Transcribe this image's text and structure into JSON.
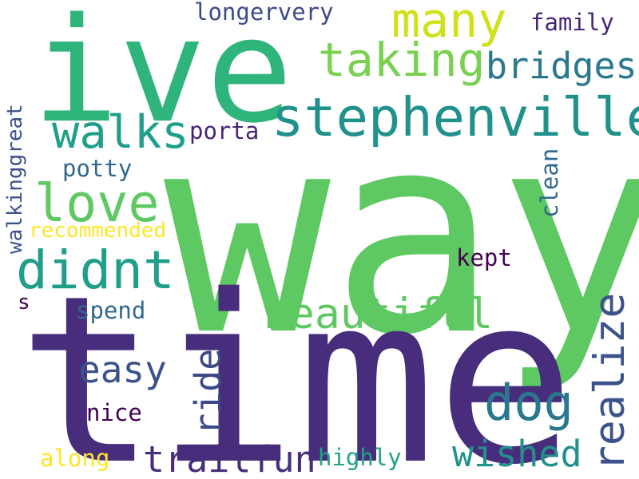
{
  "words": [
    {
      "id": "way",
      "text": "way",
      "color": "#5ec962",
      "orientation": "horizontal"
    },
    {
      "id": "time",
      "text": "time",
      "color": "#472d7b",
      "orientation": "horizontal"
    },
    {
      "id": "ive",
      "text": "ive",
      "color": "#2fb47c",
      "orientation": "horizontal"
    },
    {
      "id": "stephenville",
      "text": "stephenville",
      "color": "#21918c",
      "orientation": "horizontal"
    },
    {
      "id": "many",
      "text": "many",
      "color": "#d0e11c",
      "orientation": "horizontal"
    },
    {
      "id": "taking",
      "text": "taking",
      "color": "#7ad151",
      "orientation": "horizontal"
    },
    {
      "id": "bridges",
      "text": "bridges",
      "color": "#2a788e",
      "orientation": "horizontal"
    },
    {
      "id": "walks",
      "text": "walks",
      "color": "#1f9e89",
      "orientation": "horizontal"
    },
    {
      "id": "love",
      "text": "love",
      "color": "#5ec962",
      "orientation": "horizontal"
    },
    {
      "id": "didnt",
      "text": "didnt",
      "color": "#1f9e89",
      "orientation": "horizontal"
    },
    {
      "id": "beautiful",
      "text": "beautiful",
      "color": "#5ec962",
      "orientation": "horizontal"
    },
    {
      "id": "realize",
      "text": "realize",
      "color": "#3b528b",
      "orientation": "vertical"
    },
    {
      "id": "dog",
      "text": "dog",
      "color": "#2a788e",
      "orientation": "horizontal"
    },
    {
      "id": "easy",
      "text": "easy",
      "color": "#3b528b",
      "orientation": "horizontal"
    },
    {
      "id": "trailfun",
      "text": "trailfun",
      "color": "#472d7b",
      "orientation": "horizontal"
    },
    {
      "id": "wished",
      "text": "wished",
      "color": "#21918c",
      "orientation": "horizontal"
    },
    {
      "id": "ride",
      "text": "ride",
      "color": "#3e4989",
      "orientation": "vertical"
    },
    {
      "id": "longervery",
      "text": "longervery",
      "color": "#3e4989",
      "orientation": "horizontal"
    },
    {
      "id": "family",
      "text": "family",
      "color": "#482677",
      "orientation": "horizontal"
    },
    {
      "id": "porta",
      "text": "porta",
      "color": "#482677",
      "orientation": "horizontal"
    },
    {
      "id": "potty",
      "text": "potty",
      "color": "#31688e",
      "orientation": "horizontal"
    },
    {
      "id": "clean",
      "text": "clean",
      "color": "#31688e",
      "orientation": "vertical"
    },
    {
      "id": "walkinggreat",
      "text": "walkinggreat",
      "color": "#3b528b",
      "orientation": "vertical"
    },
    {
      "id": "recommended",
      "text": "recommended",
      "color": "#fde725",
      "orientation": "horizontal"
    },
    {
      "id": "kept",
      "text": "kept",
      "color": "#440154",
      "orientation": "horizontal"
    },
    {
      "id": "s",
      "text": "s",
      "color": "#440154",
      "orientation": "horizontal"
    },
    {
      "id": "spend",
      "text": "spend",
      "color": "#31688e",
      "orientation": "horizontal"
    },
    {
      "id": "nice",
      "text": "nice",
      "color": "#440154",
      "orientation": "horizontal"
    },
    {
      "id": "along",
      "text": "along",
      "color": "#fde725",
      "orientation": "horizontal"
    },
    {
      "id": "highly",
      "text": "highly",
      "color": "#20a386",
      "orientation": "horizontal"
    }
  ]
}
